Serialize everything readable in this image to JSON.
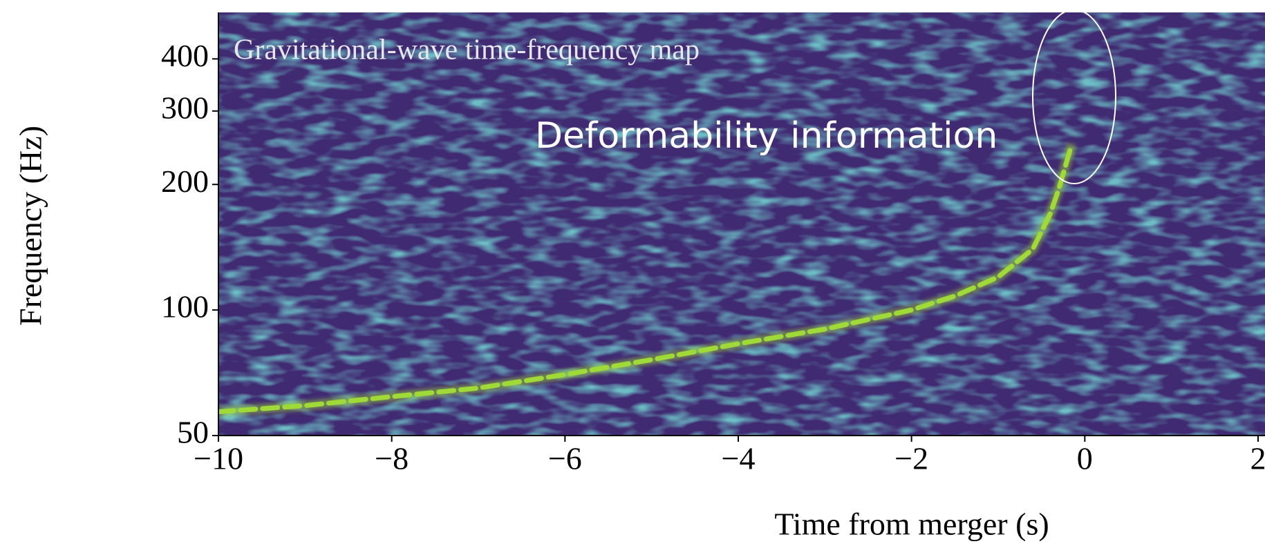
{
  "chart_data": {
    "type": "spectrogram",
    "title": "Gravitational-wave time-frequency map",
    "annotation": "Deformability information",
    "x_label": "Time from merger (s)",
    "y_label": "Frequency (Hz)",
    "xlim": [
      -10,
      2.08
    ],
    "ylim": [
      50,
      517
    ],
    "y_log": true,
    "xticks": [
      {
        "value": -10,
        "label": "−10"
      },
      {
        "value": -8,
        "label": "−8"
      },
      {
        "value": -6,
        "label": "−6"
      },
      {
        "value": -4,
        "label": "−4"
      },
      {
        "value": -2,
        "label": "−2"
      },
      0,
      2
    ],
    "yticks": [
      50,
      100,
      200,
      300,
      400
    ],
    "background_color": "#402a72",
    "noise_color": "#26828e",
    "track": {
      "x": [
        -10,
        -9,
        -8,
        -7,
        -6,
        -5,
        -4,
        -3,
        -2,
        -1.5,
        -1,
        -0.6,
        -0.4,
        -0.3,
        -0.15
      ],
      "values": [
        57,
        59,
        62,
        65,
        70,
        76,
        83,
        90,
        100,
        108,
        120,
        140,
        170,
        195,
        250
      ],
      "color": "#a0da39"
    }
  }
}
